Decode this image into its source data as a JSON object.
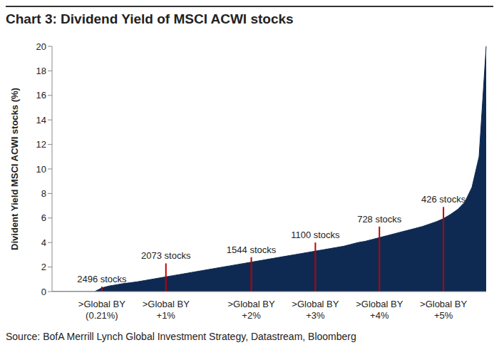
{
  "chart_data": {
    "type": "area",
    "title": "Chart 3: Dividend Yield of MSCI ACWI stocks",
    "y_label": "Divident Yield MSCI ACWI stocks (%)",
    "source": "Source: BofA Merrill Lynch Global Investment Strategy, Datastream, Bloomberg",
    "categories": [
      null,
      null,
      null,
      null,
      null,
      null,
      null,
      ">Global BY (0.21%)",
      null,
      null,
      null,
      null,
      null,
      null,
      null,
      null,
      ">Global BY +1%",
      null,
      null,
      null,
      null,
      null,
      null,
      null,
      null,
      null,
      null,
      null,
      ">Global BY +2%",
      null,
      null,
      null,
      null,
      null,
      null,
      null,
      null,
      ">Global BY +3%",
      null,
      null,
      null,
      null,
      null,
      null,
      null,
      null,
      ">Global BY +4%",
      null,
      null,
      null,
      null,
      null,
      null,
      null,
      null,
      ">Global BY +5%",
      null,
      null,
      null,
      null,
      null,
      null
    ],
    "values": [
      0,
      0,
      0,
      0,
      0,
      0,
      0,
      0.3,
      0.45,
      0.55,
      0.65,
      0.72,
      0.8,
      0.9,
      1.0,
      1.1,
      1.2,
      1.3,
      1.4,
      1.5,
      1.6,
      1.7,
      1.8,
      1.9,
      2.0,
      2.1,
      2.2,
      2.3,
      2.4,
      2.5,
      2.6,
      2.7,
      2.8,
      2.9,
      3.0,
      3.1,
      3.2,
      3.3,
      3.4,
      3.5,
      3.6,
      3.7,
      3.85,
      4.0,
      4.1,
      4.25,
      4.4,
      4.55,
      4.7,
      4.85,
      5.0,
      5.15,
      5.3,
      5.5,
      5.7,
      5.95,
      6.3,
      6.7,
      7.3,
      8.5,
      11.0,
      20
    ],
    "color": "#0f2a52",
    "ylim": [
      0,
      20
    ],
    "yticks": [
      0,
      2,
      4,
      6,
      8,
      10,
      12,
      14,
      16,
      18,
      20
    ],
    "annotations": [
      {
        "category": ">Global BY (0.21%)",
        "label": "2496 stocks",
        "value": 0.4,
        "color": "#c00000"
      },
      {
        "category": ">Global BY +1%",
        "label": "2073 stocks",
        "value": 2.3,
        "color": "#c00000"
      },
      {
        "category": ">Global BY +2%",
        "label": "1544 stocks",
        "value": 2.8,
        "color": "#c00000"
      },
      {
        "category": ">Global BY +3%",
        "label": "1100 stocks",
        "value": 4.0,
        "color": "#c00000"
      },
      {
        "category": ">Global BY +4%",
        "label": "728 stocks",
        "value": 5.3,
        "color": "#c00000"
      },
      {
        "category": ">Global BY +5%",
        "label": "426 stocks",
        "value": 6.9,
        "color": "#c00000"
      }
    ]
  }
}
